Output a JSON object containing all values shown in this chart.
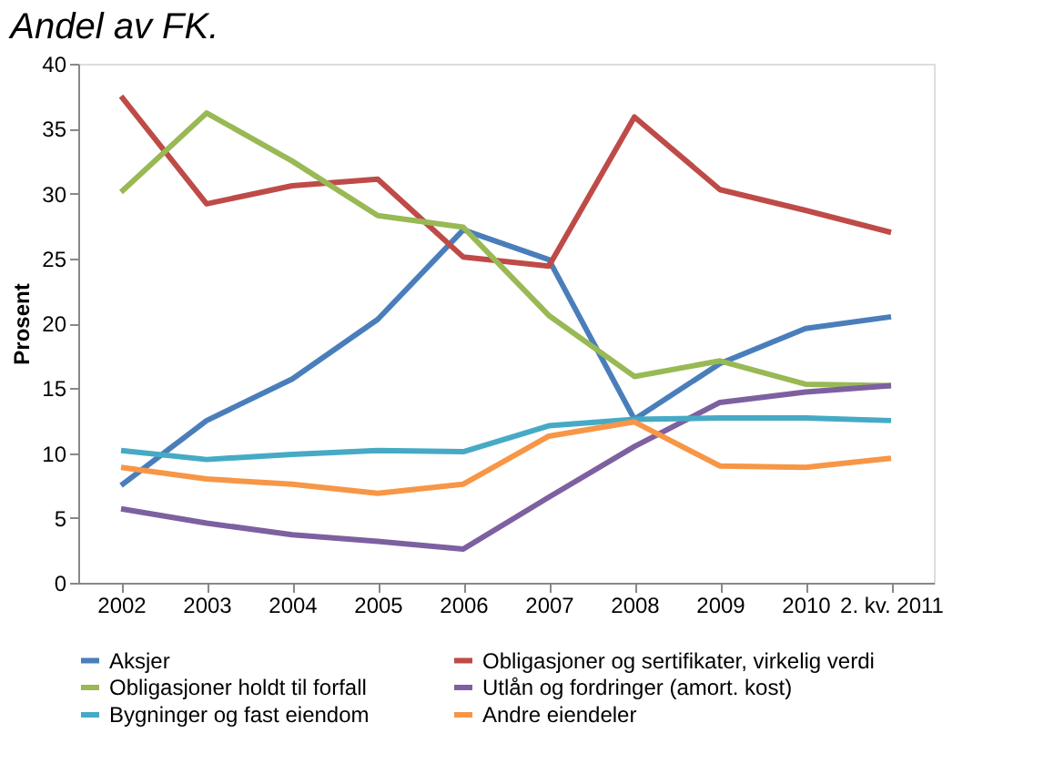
{
  "chart_data": {
    "type": "line",
    "title": "Andel av FK.",
    "ylabel": "Prosent",
    "categories": [
      "2002",
      "2003",
      "2004",
      "2005",
      "2006",
      "2007",
      "2008",
      "2009",
      "2010",
      "2. kv. 2011"
    ],
    "series": [
      {
        "name": "Aksjer",
        "color": "#4a7ebb",
        "values": [
          7.5,
          12.5,
          15.7,
          20.3,
          27.2,
          24.9,
          12.6,
          16.9,
          19.6,
          20.5
        ]
      },
      {
        "name": "Obligasjoner og sertifikater, virkelig verdi",
        "color": "#be4b48",
        "values": [
          37.5,
          29.2,
          30.6,
          31.1,
          25.1,
          24.4,
          35.9,
          30.3,
          28.7,
          27.0
        ]
      },
      {
        "name": "Obligasjoner holdt til forfall",
        "color": "#98b954",
        "values": [
          30.1,
          36.2,
          32.5,
          28.3,
          27.4,
          20.6,
          15.9,
          17.1,
          15.3,
          15.2
        ]
      },
      {
        "name": "Utlån og fordringer (amort. kost)",
        "color": "#7d60a0",
        "values": [
          5.7,
          4.6,
          3.7,
          3.2,
          2.6,
          6.6,
          10.5,
          13.9,
          14.7,
          15.2
        ]
      },
      {
        "name": "Bygninger og fast eiendom",
        "color": "#46aac5",
        "values": [
          10.2,
          9.5,
          9.9,
          10.2,
          10.1,
          12.1,
          12.6,
          12.7,
          12.7,
          12.5
        ]
      },
      {
        "name": "Andre eiendeler",
        "color": "#f79646",
        "values": [
          8.9,
          8.0,
          7.6,
          6.9,
          7.6,
          11.3,
          12.4,
          9.0,
          8.9,
          9.6
        ]
      }
    ],
    "ylim": [
      0,
      40
    ],
    "yticks": [
      0,
      5,
      10,
      15,
      20,
      25,
      30,
      35,
      40
    ],
    "grid": false,
    "legend": "bottom",
    "marker": "none",
    "line_style": "solid"
  }
}
